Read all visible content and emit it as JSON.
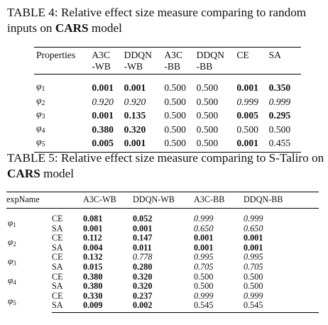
{
  "table4": {
    "caption_prefix": "TABLE 4: Relative effect size measure comparing to random inputs on ",
    "caption_model": "CARS",
    "caption_suffix": " model",
    "header_top": [
      "Properties",
      "A3C",
      "DDQN",
      "A3C",
      "DDQN",
      "CE",
      "SA"
    ],
    "header_bottom": [
      "",
      "-WB",
      "-WB",
      "-BB",
      "-BB",
      "",
      ""
    ],
    "rows": [
      {
        "prop": "φ",
        "sub": "1",
        "cells": [
          {
            "v": "0.001",
            "s": "b"
          },
          {
            "v": "0.001",
            "s": "b"
          },
          {
            "v": "0.500",
            "s": ""
          },
          {
            "v": "0.500",
            "s": ""
          },
          {
            "v": "0.001",
            "s": "b"
          },
          {
            "v": "0.350",
            "s": "b"
          }
        ]
      },
      {
        "prop": "φ",
        "sub": "2",
        "cells": [
          {
            "v": "0.920",
            "s": "i"
          },
          {
            "v": "0.920",
            "s": "i"
          },
          {
            "v": "0.500",
            "s": ""
          },
          {
            "v": "0.500",
            "s": ""
          },
          {
            "v": "0.999",
            "s": "i"
          },
          {
            "v": "0.999",
            "s": "i"
          }
        ]
      },
      {
        "prop": "φ",
        "sub": "3",
        "cells": [
          {
            "v": "0.001",
            "s": "b"
          },
          {
            "v": "0.135",
            "s": "b"
          },
          {
            "v": "0.500",
            "s": ""
          },
          {
            "v": "0.500",
            "s": ""
          },
          {
            "v": "0.005",
            "s": "b"
          },
          {
            "v": "0.295",
            "s": "b"
          }
        ]
      },
      {
        "prop": "φ",
        "sub": "4",
        "cells": [
          {
            "v": "0.380",
            "s": "b"
          },
          {
            "v": "0.320",
            "s": "b"
          },
          {
            "v": "0.500",
            "s": ""
          },
          {
            "v": "0.500",
            "s": ""
          },
          {
            "v": "0.500",
            "s": ""
          },
          {
            "v": "0.500",
            "s": ""
          }
        ]
      },
      {
        "prop": "φ",
        "sub": "5",
        "cells": [
          {
            "v": "0.005",
            "s": "b"
          },
          {
            "v": "0.001",
            "s": "b"
          },
          {
            "v": "0.500",
            "s": ""
          },
          {
            "v": "0.500",
            "s": ""
          },
          {
            "v": "0.001",
            "s": "b"
          },
          {
            "v": "0.455",
            "s": ""
          }
        ]
      }
    ]
  },
  "table5": {
    "caption_prefix": "TABLE 5: Relative effect size measure comparing to S-Taliro on ",
    "caption_model": "CARS",
    "caption_suffix": " model",
    "headers": [
      "expName",
      "",
      "A3C-WB",
      "DDQN-WB",
      "A3C-BB",
      "DDQN-BB"
    ],
    "groups": [
      {
        "prop": "φ",
        "sub": "1",
        "rows": [
          {
            "method": "CE",
            "cells": [
              {
                "v": "0.081",
                "s": "b"
              },
              {
                "v": "0.052",
                "s": "b"
              },
              {
                "v": "0.999",
                "s": "i"
              },
              {
                "v": "0.999",
                "s": "i"
              }
            ]
          },
          {
            "method": "SA",
            "cells": [
              {
                "v": "0.001",
                "s": "b"
              },
              {
                "v": "0.001",
                "s": "b"
              },
              {
                "v": "0.650",
                "s": "i"
              },
              {
                "v": "0.650",
                "s": "i"
              }
            ]
          }
        ]
      },
      {
        "prop": "φ",
        "sub": "2",
        "rows": [
          {
            "method": "CE",
            "cells": [
              {
                "v": "0.112",
                "s": "b"
              },
              {
                "v": "0.147",
                "s": "b"
              },
              {
                "v": "0.001",
                "s": "b"
              },
              {
                "v": "0.001",
                "s": "b"
              }
            ]
          },
          {
            "method": "SA",
            "cells": [
              {
                "v": "0.004",
                "s": "b"
              },
              {
                "v": "0.011",
                "s": "b"
              },
              {
                "v": "0.001",
                "s": "b"
              },
              {
                "v": "0.001",
                "s": "b"
              }
            ]
          }
        ]
      },
      {
        "prop": "φ",
        "sub": "3",
        "rows": [
          {
            "method": "CE",
            "cells": [
              {
                "v": "0.132",
                "s": "b"
              },
              {
                "v": "0.778",
                "s": "i"
              },
              {
                "v": "0.995",
                "s": "i"
              },
              {
                "v": "0.995",
                "s": "i"
              }
            ]
          },
          {
            "method": "SA",
            "cells": [
              {
                "v": "0.015",
                "s": "b"
              },
              {
                "v": "0.280",
                "s": "b"
              },
              {
                "v": "0.705",
                "s": "i"
              },
              {
                "v": "0.705",
                "s": "i"
              }
            ]
          }
        ]
      },
      {
        "prop": "φ",
        "sub": "4",
        "rows": [
          {
            "method": "CE",
            "cells": [
              {
                "v": "0.380",
                "s": "b"
              },
              {
                "v": "0.320",
                "s": "b"
              },
              {
                "v": "0.500",
                "s": ""
              },
              {
                "v": "0.500",
                "s": ""
              }
            ]
          },
          {
            "method": "SA",
            "cells": [
              {
                "v": "0.380",
                "s": "b"
              },
              {
                "v": "0.320",
                "s": "b"
              },
              {
                "v": "0.500",
                "s": ""
              },
              {
                "v": "0.500",
                "s": ""
              }
            ]
          }
        ]
      },
      {
        "prop": "φ",
        "sub": "5",
        "rows": [
          {
            "method": "CE",
            "cells": [
              {
                "v": "0.330",
                "s": "b"
              },
              {
                "v": "0.237",
                "s": "b"
              },
              {
                "v": "0.999",
                "s": "i"
              },
              {
                "v": "0.999",
                "s": "i"
              }
            ]
          },
          {
            "method": "SA",
            "cells": [
              {
                "v": "0.009",
                "s": "b"
              },
              {
                "v": "0.002",
                "s": "b"
              },
              {
                "v": "0.545",
                "s": ""
              },
              {
                "v": "0.545",
                "s": ""
              }
            ]
          }
        ]
      }
    ]
  }
}
